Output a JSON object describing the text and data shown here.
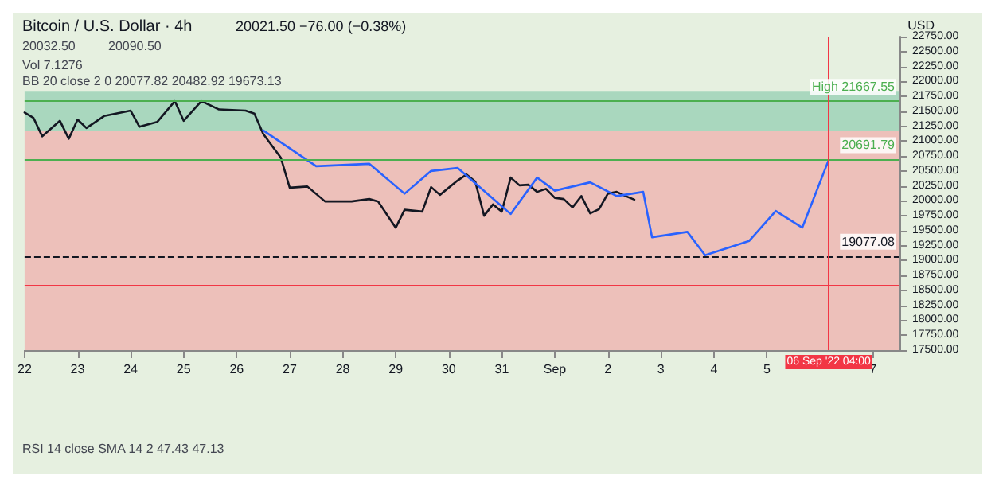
{
  "chart_data": {
    "type": "line",
    "title": "Bitcoin / U.S. Dollar · 4h",
    "subtitle": "20021.50 −76.00 (−0.38%)",
    "ylabel": "USD",
    "annotations": [
      "20032.50",
      "20090.50",
      "Vol 7.1276",
      "BB 20 close 2 0 20077.82 20482.92 19673.13",
      "RSI 14 close SMA 14 2 47.43 47.13"
    ],
    "xlim": [
      "2022-08-22T00:00",
      "2022-09-07T12:00"
    ],
    "xticks": [
      {
        "value": "2022-08-22",
        "label": "22"
      },
      {
        "value": "2022-08-23",
        "label": "23"
      },
      {
        "value": "2022-08-24",
        "label": "24"
      },
      {
        "value": "2022-08-25",
        "label": "25"
      },
      {
        "value": "2022-08-26",
        "label": "26"
      },
      {
        "value": "2022-08-27",
        "label": "27"
      },
      {
        "value": "2022-08-28",
        "label": "28"
      },
      {
        "value": "2022-08-29",
        "label": "29"
      },
      {
        "value": "2022-08-30",
        "label": "30"
      },
      {
        "value": "2022-08-31",
        "label": "31"
      },
      {
        "value": "2022-09-01",
        "label": "Sep"
      },
      {
        "value": "2022-09-02",
        "label": "2"
      },
      {
        "value": "2022-09-03",
        "label": "3"
      },
      {
        "value": "2022-09-04",
        "label": "4"
      },
      {
        "value": "2022-09-05",
        "label": "5"
      },
      {
        "value": "2022-09-07",
        "label": "7"
      }
    ],
    "ylim": [
      17500,
      22750
    ],
    "yticks": [
      {
        "value": 17500,
        "label": "17500.00"
      },
      {
        "value": 17750,
        "label": "17750.00"
      },
      {
        "value": 18000,
        "label": "18000.00"
      },
      {
        "value": 18250,
        "label": "18250.00"
      },
      {
        "value": 18500,
        "label": "18500.00"
      },
      {
        "value": 18750,
        "label": "18750.00"
      },
      {
        "value": 19000,
        "label": "19000.00"
      },
      {
        "value": 19250,
        "label": "19250.00"
      },
      {
        "value": 19500,
        "label": "19500.00"
      },
      {
        "value": 19750,
        "label": "19750.00"
      },
      {
        "value": 20000,
        "label": "20000.00"
      },
      {
        "value": 20250,
        "label": "20250.00"
      },
      {
        "value": 20500,
        "label": "20500.00"
      },
      {
        "value": 20750,
        "label": "20750.00"
      },
      {
        "value": 21000,
        "label": "21000.00"
      },
      {
        "value": 21250,
        "label": "21250.00"
      },
      {
        "value": 21500,
        "label": "21500.00"
      },
      {
        "value": 21750,
        "label": "21750.00"
      },
      {
        "value": 22000,
        "label": "22000.00"
      },
      {
        "value": 22250,
        "label": "22250.00"
      },
      {
        "value": 22500,
        "label": "22500.00"
      },
      {
        "value": 22750,
        "label": "22750.00"
      }
    ],
    "grid": false,
    "marker": "none",
    "line_style": "solid",
    "series": [
      {
        "color": "#131722",
        "x": [
          "2022-08-22T00:00",
          "2022-08-22T04:00",
          "2022-08-22T08:00",
          "2022-08-22T16:00",
          "2022-08-22T20:00",
          "2022-08-23T00:00",
          "2022-08-23T04:00",
          "2022-08-23T12:00",
          "2022-08-24T00:00",
          "2022-08-24T04:00",
          "2022-08-24T12:00",
          "2022-08-24T20:00",
          "2022-08-25T00:00",
          "2022-08-25T08:00",
          "2022-08-25T16:00",
          "2022-08-26T04:00",
          "2022-08-26T08:00",
          "2022-08-26T12:00",
          "2022-08-26T20:00",
          "2022-08-27T00:00",
          "2022-08-27T08:00",
          "2022-08-27T16:00",
          "2022-08-28T04:00",
          "2022-08-28T12:00",
          "2022-08-28T16:00",
          "2022-08-29T00:00",
          "2022-08-29T04:00",
          "2022-08-29T12:00",
          "2022-08-29T16:00",
          "2022-08-29T20:00",
          "2022-08-30T04:00",
          "2022-08-30T08:00",
          "2022-08-30T12:00",
          "2022-08-30T16:00",
          "2022-08-30T20:00",
          "2022-08-31T00:00",
          "2022-08-31T04:00",
          "2022-08-31T08:00",
          "2022-08-31T12:00",
          "2022-08-31T16:00",
          "2022-08-31T20:00",
          "2022-09-01T00:00",
          "2022-09-01T04:00",
          "2022-09-01T08:00",
          "2022-09-01T12:00",
          "2022-09-01T16:00",
          "2022-09-01T20:00",
          "2022-09-02T00:00",
          "2022-09-02T04:00",
          "2022-09-02T08:00",
          "2022-09-02T12:00"
        ],
        "values": [
          21480,
          21390,
          21080,
          21340,
          21040,
          21360,
          21220,
          21420,
          21510,
          21240,
          21320,
          21670,
          21340,
          21670,
          21530,
          21510,
          21460,
          21120,
          20720,
          20220,
          20240,
          19990,
          19990,
          20030,
          19990,
          19550,
          19850,
          19820,
          20230,
          20100,
          20340,
          20440,
          20320,
          19750,
          19940,
          19820,
          20390,
          20260,
          20270,
          20150,
          20200,
          20050,
          20030,
          19890,
          20080,
          19790,
          19860,
          20120,
          20150,
          20080,
          20020
        ]
      },
      {
        "color": "#2962ff",
        "x": [
          "2022-08-26T12:00",
          "2022-08-27T12:00",
          "2022-08-28T12:00",
          "2022-08-29T04:00",
          "2022-08-29T16:00",
          "2022-08-30T04:00",
          "2022-08-31T04:00",
          "2022-08-31T16:00",
          "2022-09-01T00:00",
          "2022-09-01T16:00",
          "2022-09-02T04:00",
          "2022-09-02T16:00",
          "2022-09-02T20:00",
          "2022-09-03T12:00",
          "2022-09-03T20:00",
          "2022-09-04T16:00",
          "2022-09-05T04:00",
          "2022-09-05T16:00",
          "2022-09-06T04:00"
        ],
        "values": [
          21180,
          20580,
          20620,
          20120,
          20500,
          20550,
          19780,
          20390,
          20170,
          20310,
          20080,
          20150,
          19390,
          19480,
          19090,
          19330,
          19830,
          19550,
          20690
        ]
      }
    ],
    "ref_lines": [
      {
        "axis": "y",
        "value": 21667.55,
        "label": "High 21667.55",
        "color": "#4caf50"
      },
      {
        "axis": "y",
        "value": 20691.79,
        "label": "20691.79",
        "color": "#4caf50"
      },
      {
        "axis": "y",
        "value": 19077.08,
        "label": "19077.08",
        "color": "#131722",
        "line_style": "dashed"
      },
      {
        "axis": "y",
        "value": 18578,
        "color": "#f23645"
      },
      {
        "axis": "x",
        "value": "2022-09-06T04:00",
        "label": "06 Sep '22 04:00",
        "color": "#f23645"
      }
    ],
    "bands": [
      {
        "axis": "y",
        "from": 21170,
        "to": 21840,
        "color": "#81c7a6"
      },
      {
        "axis": "y",
        "from": 17500,
        "to": 21170,
        "color": "#f2a0a0"
      }
    ]
  }
}
